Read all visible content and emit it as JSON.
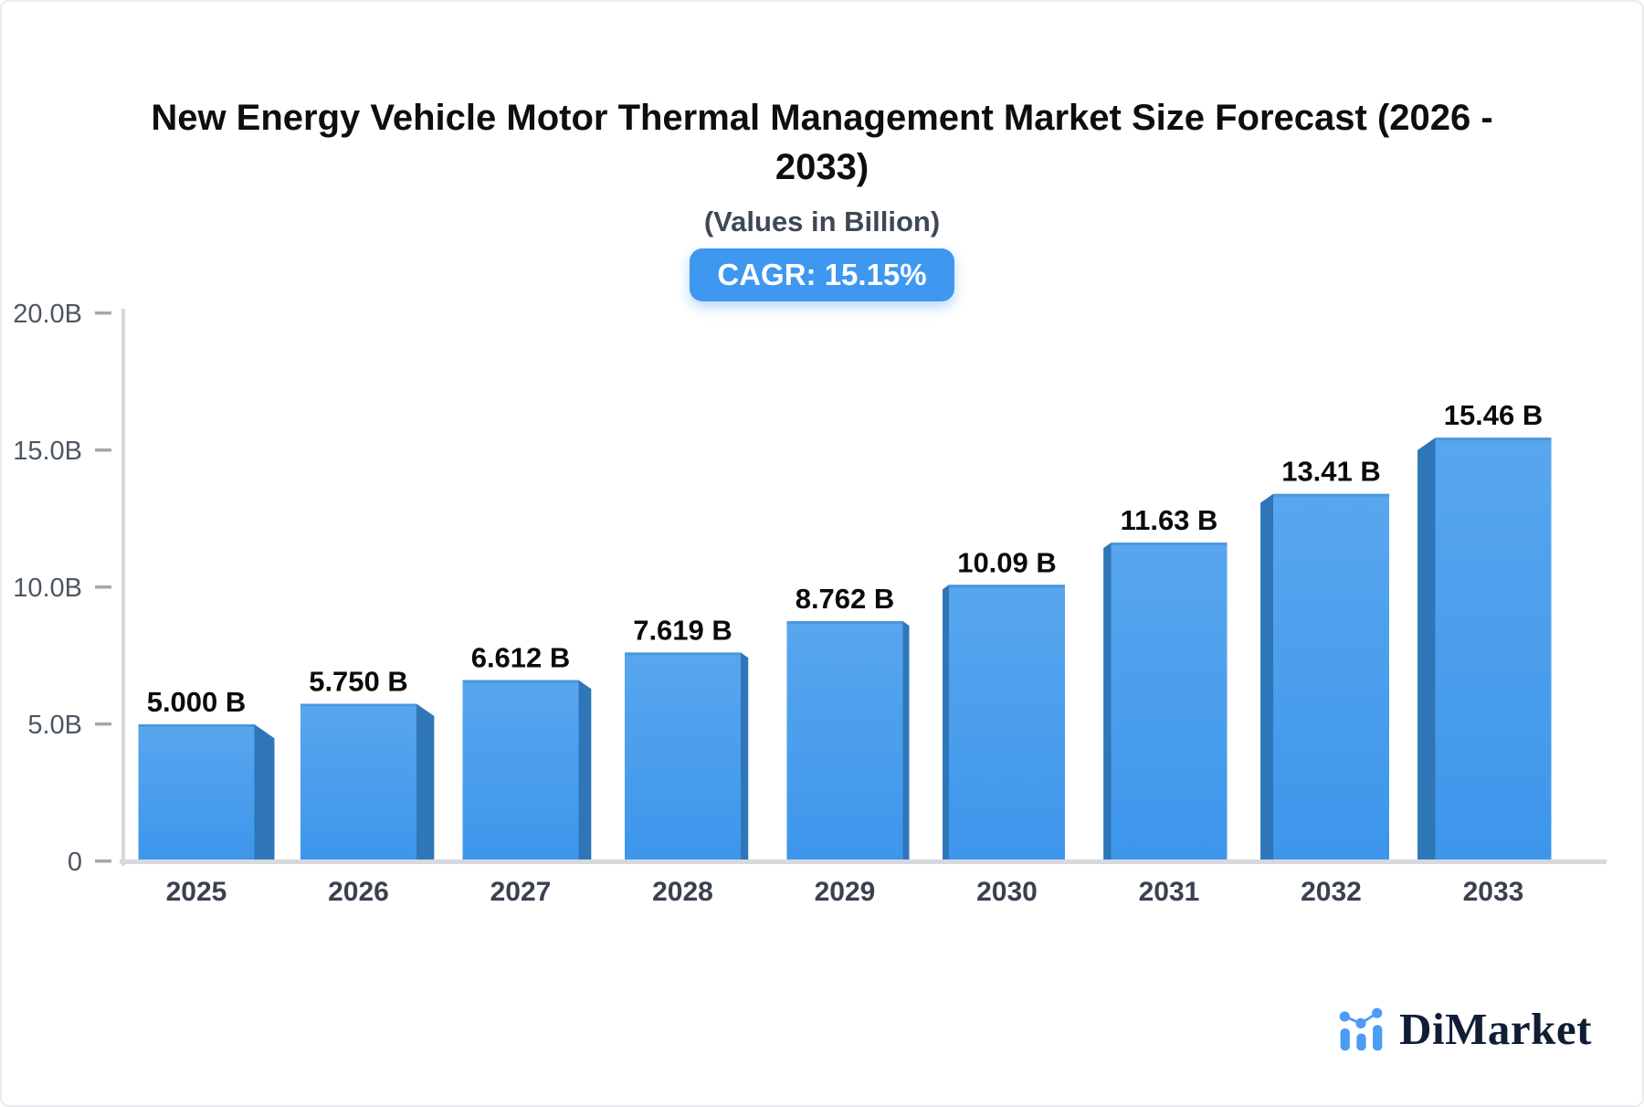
{
  "header": {
    "title_lines": [
      "New Energy Vehicle Motor Thermal Management Market Size Forecast (2026 -",
      "2033)"
    ],
    "subtitle": "(Values in Billion)",
    "cagr_badge": "CAGR: 15.15%"
  },
  "logo": {
    "brand": "DiMarket"
  },
  "colors": {
    "badge_blue": "#3f98f0",
    "bar_face_top": "#58a6ee",
    "bar_face_bottom": "#3d96eb",
    "bar_side": "#2e76b8",
    "bar_top_edge": "#4a97db",
    "axis_line": "#d7d8dd",
    "tick_mark": "#a2a8b0",
    "y_label": "#4d5763",
    "x_label": "#39424e",
    "data_label": "#0b0b0b",
    "logo_icon_blue": "#4c9bf5",
    "logo_text_navy": "#101d35"
  },
  "chart_data": {
    "type": "bar",
    "title": "New Energy Vehicle Motor Thermal Management Market Size Forecast (2026 - 2033)",
    "subtitle": "(Values in Billion)",
    "annotation": "CAGR: 15.15%",
    "categories": [
      "2025",
      "2026",
      "2027",
      "2028",
      "2029",
      "2030",
      "2031",
      "2032",
      "2033"
    ],
    "values": [
      5.0,
      5.75,
      6.612,
      7.619,
      8.762,
      10.09,
      11.63,
      13.41,
      15.46
    ],
    "bar_labels": [
      "5.000 B",
      "5.750 B",
      "6.612 B",
      "7.619 B",
      "8.762 B",
      "10.09 B",
      "11.63 B",
      "13.41 B",
      "15.46 B"
    ],
    "y_ticks": [
      {
        "label": "20.0B",
        "value": 20
      },
      {
        "label": "15.0B",
        "value": 15
      },
      {
        "label": "10.0B",
        "value": 10
      },
      {
        "label": "5.0B",
        "value": 5
      },
      {
        "label": "0",
        "value": 0
      }
    ],
    "ylim": [
      0,
      20
    ],
    "xlabel": "",
    "ylabel": "",
    "grid": false,
    "legend": false,
    "style": "3d-extruded-bars"
  }
}
